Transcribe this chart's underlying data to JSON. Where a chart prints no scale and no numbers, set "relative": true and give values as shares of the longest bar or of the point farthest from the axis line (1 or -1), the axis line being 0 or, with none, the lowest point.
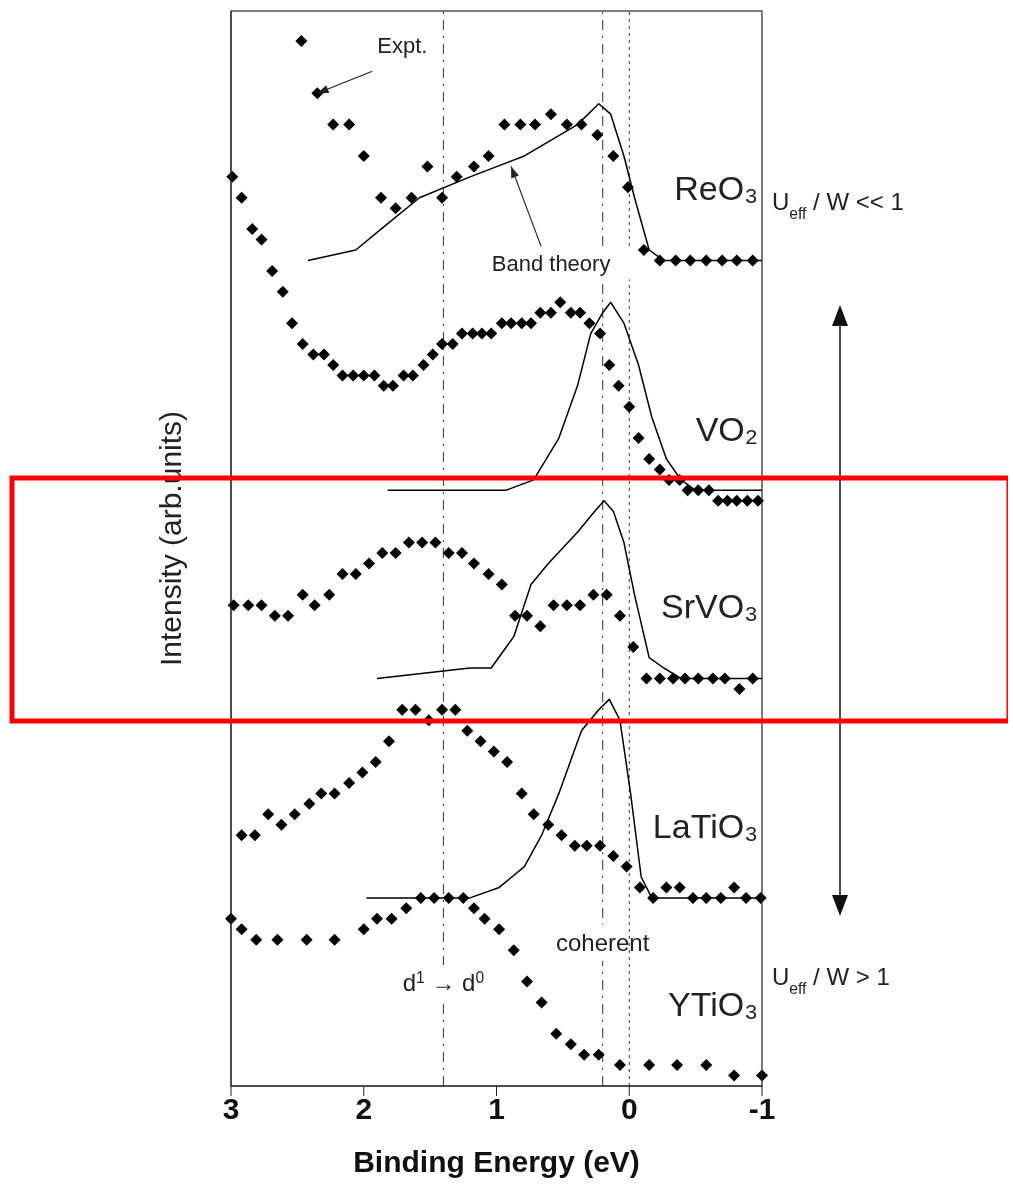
{
  "chart_data": {
    "type": "scatter",
    "xlabel": "Binding Energy (eV)",
    "ylabel": "Intensity (arb.units)",
    "relative": true,
    "xlim": [
      3,
      -1
    ],
    "xticks": [
      3,
      2,
      1,
      0,
      -1
    ],
    "marker": "diamond",
    "series": [
      {
        "name": "ReO₃",
        "color": "#000000",
        "x": [
          2.47,
          2.35,
          2.23,
          2.11,
          2.0,
          1.87,
          1.76,
          1.64,
          1.52,
          1.41,
          1.3,
          1.17,
          1.06,
          0.94,
          0.82,
          0.71,
          0.59,
          0.47,
          0.36,
          0.24,
          0.12,
          0.01,
          -0.11,
          -0.23,
          -0.35,
          -0.46,
          -0.58,
          -0.7,
          -0.81,
          -0.93
        ],
        "values": [
          1.0,
          0.95,
          0.92,
          0.92,
          0.89,
          0.85,
          0.84,
          0.85,
          0.88,
          0.85,
          0.87,
          0.88,
          0.89,
          0.92,
          0.92,
          0.92,
          0.93,
          0.92,
          0.92,
          0.91,
          0.89,
          0.86,
          0.8,
          0.79,
          0.79,
          0.79,
          0.79,
          0.79,
          0.79,
          0.79
        ]
      },
      {
        "name": "VO₂",
        "color": "#000000",
        "x": [
          2.99,
          2.92,
          2.84,
          2.77,
          2.69,
          2.61,
          2.54,
          2.46,
          2.38,
          2.3,
          2.23,
          2.16,
          2.08,
          2.0,
          1.92,
          1.85,
          1.78,
          1.7,
          1.63,
          1.55,
          1.48,
          1.41,
          1.33,
          1.26,
          1.18,
          1.11,
          1.04,
          0.96,
          0.89,
          0.81,
          0.74,
          0.67,
          0.59,
          0.52,
          0.44,
          0.37,
          0.3,
          0.22,
          0.15,
          0.08,
          0.0,
          -0.07,
          -0.15,
          -0.23,
          -0.3,
          -0.38,
          -0.44,
          -0.52,
          -0.6,
          -0.67,
          -0.74,
          -0.81,
          -0.89,
          -0.97
        ],
        "values": [
          0.87,
          0.85,
          0.82,
          0.81,
          0.78,
          0.76,
          0.73,
          0.71,
          0.7,
          0.7,
          0.69,
          0.68,
          0.68,
          0.68,
          0.68,
          0.67,
          0.67,
          0.68,
          0.68,
          0.69,
          0.7,
          0.71,
          0.71,
          0.72,
          0.72,
          0.72,
          0.72,
          0.73,
          0.73,
          0.73,
          0.73,
          0.74,
          0.74,
          0.75,
          0.74,
          0.74,
          0.73,
          0.72,
          0.69,
          0.67,
          0.65,
          0.62,
          0.6,
          0.59,
          0.58,
          0.58,
          0.57,
          0.57,
          0.57,
          0.56,
          0.56,
          0.56,
          0.56,
          0.56
        ]
      },
      {
        "name": "SrVO₃",
        "color": "#000000",
        "x": [
          2.98,
          2.87,
          2.77,
          2.67,
          2.57,
          2.46,
          2.37,
          2.26,
          2.16,
          2.06,
          1.96,
          1.86,
          1.76,
          1.66,
          1.56,
          1.46,
          1.36,
          1.26,
          1.17,
          1.06,
          0.96,
          0.86,
          0.77,
          0.67,
          0.57,
          0.47,
          0.37,
          0.27,
          0.17,
          0.07,
          -0.03,
          -0.13,
          -0.23,
          -0.33,
          -0.42,
          -0.52,
          -0.63,
          -0.72,
          -0.83,
          -0.93
        ],
        "values": [
          0.46,
          0.46,
          0.46,
          0.45,
          0.45,
          0.47,
          0.46,
          0.47,
          0.49,
          0.49,
          0.5,
          0.51,
          0.51,
          0.52,
          0.52,
          0.52,
          0.51,
          0.51,
          0.5,
          0.49,
          0.48,
          0.45,
          0.45,
          0.44,
          0.46,
          0.46,
          0.46,
          0.47,
          0.47,
          0.45,
          0.42,
          0.39,
          0.39,
          0.39,
          0.39,
          0.39,
          0.39,
          0.39,
          0.38,
          0.39
        ]
      },
      {
        "name": "LaTiO₃",
        "color": "#000000",
        "x": [
          2.92,
          2.82,
          2.72,
          2.62,
          2.52,
          2.41,
          2.32,
          2.22,
          2.11,
          2.01,
          1.91,
          1.81,
          1.71,
          1.61,
          1.51,
          1.41,
          1.31,
          1.22,
          1.12,
          1.02,
          0.92,
          0.81,
          0.72,
          0.61,
          0.51,
          0.41,
          0.32,
          0.22,
          0.12,
          0.02,
          -0.08,
          -0.18,
          -0.28,
          -0.38,
          -0.48,
          -0.58,
          -0.69,
          -0.79,
          -0.88,
          -0.99
        ],
        "values": [
          0.24,
          0.24,
          0.26,
          0.25,
          0.26,
          0.27,
          0.28,
          0.28,
          0.29,
          0.3,
          0.31,
          0.33,
          0.36,
          0.36,
          0.35,
          0.36,
          0.36,
          0.34,
          0.33,
          0.32,
          0.31,
          0.28,
          0.26,
          0.25,
          0.24,
          0.23,
          0.23,
          0.23,
          0.22,
          0.21,
          0.19,
          0.18,
          0.19,
          0.19,
          0.18,
          0.18,
          0.18,
          0.19,
          0.18,
          0.18
        ]
      },
      {
        "name": "YTiO₃",
        "color": "#000000",
        "x": [
          3.0,
          2.92,
          2.81,
          2.65,
          2.43,
          2.22,
          2.0,
          1.9,
          1.79,
          1.68,
          1.57,
          1.47,
          1.36,
          1.25,
          1.17,
          1.09,
          0.98,
          0.87,
          0.77,
          0.66,
          0.55,
          0.44,
          0.34,
          0.23,
          0.07,
          -0.15,
          -0.36,
          -0.58,
          -0.79,
          -1.0
        ],
        "values": [
          0.16,
          0.15,
          0.14,
          0.14,
          0.14,
          0.14,
          0.15,
          0.16,
          0.16,
          0.17,
          0.18,
          0.18,
          0.18,
          0.18,
          0.17,
          0.16,
          0.15,
          0.13,
          0.1,
          0.08,
          0.05,
          0.04,
          0.03,
          0.03,
          0.02,
          0.02,
          0.02,
          0.02,
          0.01,
          0.01
        ]
      },
      {
        "type": "line",
        "color": "#000000",
        "marker": "none",
        "x": [
          2.42,
          2.06,
          1.87,
          1.58,
          1.2,
          0.79,
          0.39,
          0.23,
          0.14,
          0.04,
          -0.04,
          -0.15,
          -0.26,
          -1.0
        ],
        "values": [
          0.79,
          0.8,
          0.82,
          0.85,
          0.87,
          0.89,
          0.92,
          0.94,
          0.93,
          0.89,
          0.85,
          0.8,
          0.79,
          0.79
        ]
      },
      {
        "type": "line",
        "color": "#000000",
        "marker": "none",
        "x": [
          1.82,
          0.93,
          0.72,
          0.53,
          0.39,
          0.29,
          0.2,
          0.14,
          0.04,
          -0.07,
          -0.17,
          -0.28,
          -0.39,
          -0.5,
          -1.0
        ],
        "values": [
          0.57,
          0.57,
          0.58,
          0.62,
          0.67,
          0.72,
          0.74,
          0.75,
          0.73,
          0.69,
          0.64,
          0.6,
          0.58,
          0.57,
          0.57
        ]
      },
      {
        "type": "line",
        "color": "#000000",
        "marker": "none",
        "x": [
          1.9,
          1.2,
          1.04,
          0.87,
          0.74,
          0.61,
          0.39,
          0.26,
          0.19,
          0.12,
          0.04,
          -0.04,
          -0.15,
          -0.26,
          -0.39,
          -1.0
        ],
        "values": [
          0.39,
          0.4,
          0.4,
          0.43,
          0.48,
          0.5,
          0.53,
          0.55,
          0.56,
          0.55,
          0.52,
          0.47,
          0.41,
          0.4,
          0.39,
          0.39
        ]
      },
      {
        "type": "line",
        "color": "#000000",
        "marker": "none",
        "x": [
          1.98,
          1.2,
          0.98,
          0.79,
          0.66,
          0.53,
          0.36,
          0.23,
          0.15,
          0.07,
          -0.01,
          -0.09,
          -0.17,
          -1.0
        ],
        "values": [
          0.18,
          0.18,
          0.19,
          0.21,
          0.24,
          0.28,
          0.34,
          0.36,
          0.37,
          0.35,
          0.28,
          0.2,
          0.18,
          0.18
        ]
      }
    ],
    "ref_lines": [
      {
        "axis": "x",
        "value": 1.4,
        "label": "d$^{1}$ → d$^{0}$",
        "line_style": "dashed"
      },
      {
        "axis": "x",
        "value": 0.2,
        "label": "coherent",
        "line_style": "dashed"
      },
      {
        "axis": "x",
        "value": 0,
        "line_style": "dotted"
      }
    ],
    "annotations": [
      {
        "text": "Expt.",
        "x": 2.35,
        "y": 0.95
      },
      {
        "text": "Band theory",
        "x": 0.89,
        "y": 0.88
      },
      "U$_{eff}$ / W << 1",
      "U$_{eff}$ / W > 1"
    ]
  }
}
